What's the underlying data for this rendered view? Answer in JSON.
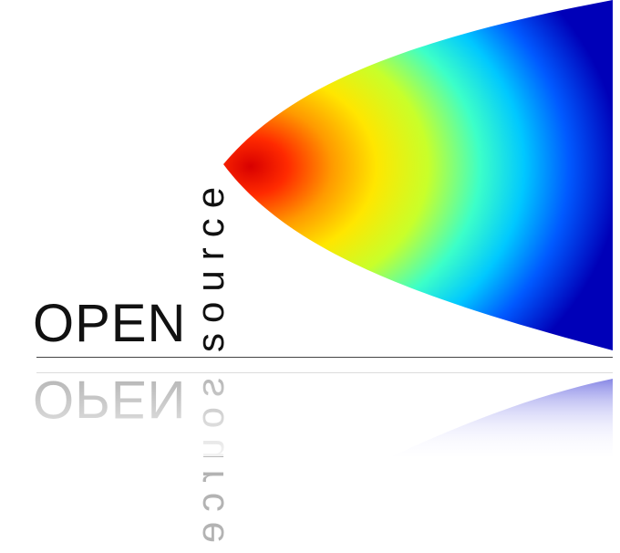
{
  "logo": {
    "word_open": "OPEN",
    "word_source": "source",
    "colors": {
      "text": "#111111",
      "rule": "#444444",
      "plume_edge": "#0a18d8",
      "plume_mid": "#c8ff2a",
      "plume_core": "#e00000",
      "reflection": "#9a9a9a"
    }
  }
}
